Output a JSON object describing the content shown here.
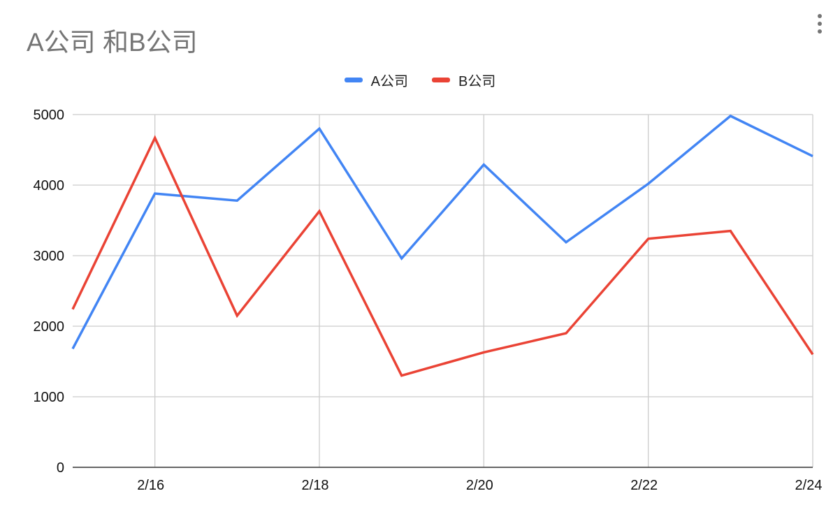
{
  "chart_data": {
    "type": "line",
    "title": "A公司 和B公司",
    "x": [
      "2/15",
      "2/16",
      "2/17",
      "2/18",
      "2/19",
      "2/20",
      "2/21",
      "2/22",
      "2/23",
      "2/24"
    ],
    "x_tick_labels": [
      "2/16",
      "2/18",
      "2/20",
      "2/22",
      "2/24"
    ],
    "y_tick_labels": [
      "0",
      "1000",
      "2000",
      "3000",
      "4000",
      "5000"
    ],
    "ylim": [
      0,
      5000
    ],
    "grid": true,
    "legend_position": "top",
    "series": [
      {
        "name": "A公司",
        "color": "#4285f4",
        "values": [
          1680,
          3880,
          3780,
          4800,
          2960,
          4290,
          3190,
          4020,
          4980,
          4410
        ]
      },
      {
        "name": "B公司",
        "color": "#ea4335",
        "values": [
          2240,
          4670,
          2150,
          3630,
          1300,
          1630,
          1900,
          3240,
          3350,
          1600
        ]
      }
    ]
  },
  "ui": {
    "menu_icon": "more-vert-icon"
  }
}
